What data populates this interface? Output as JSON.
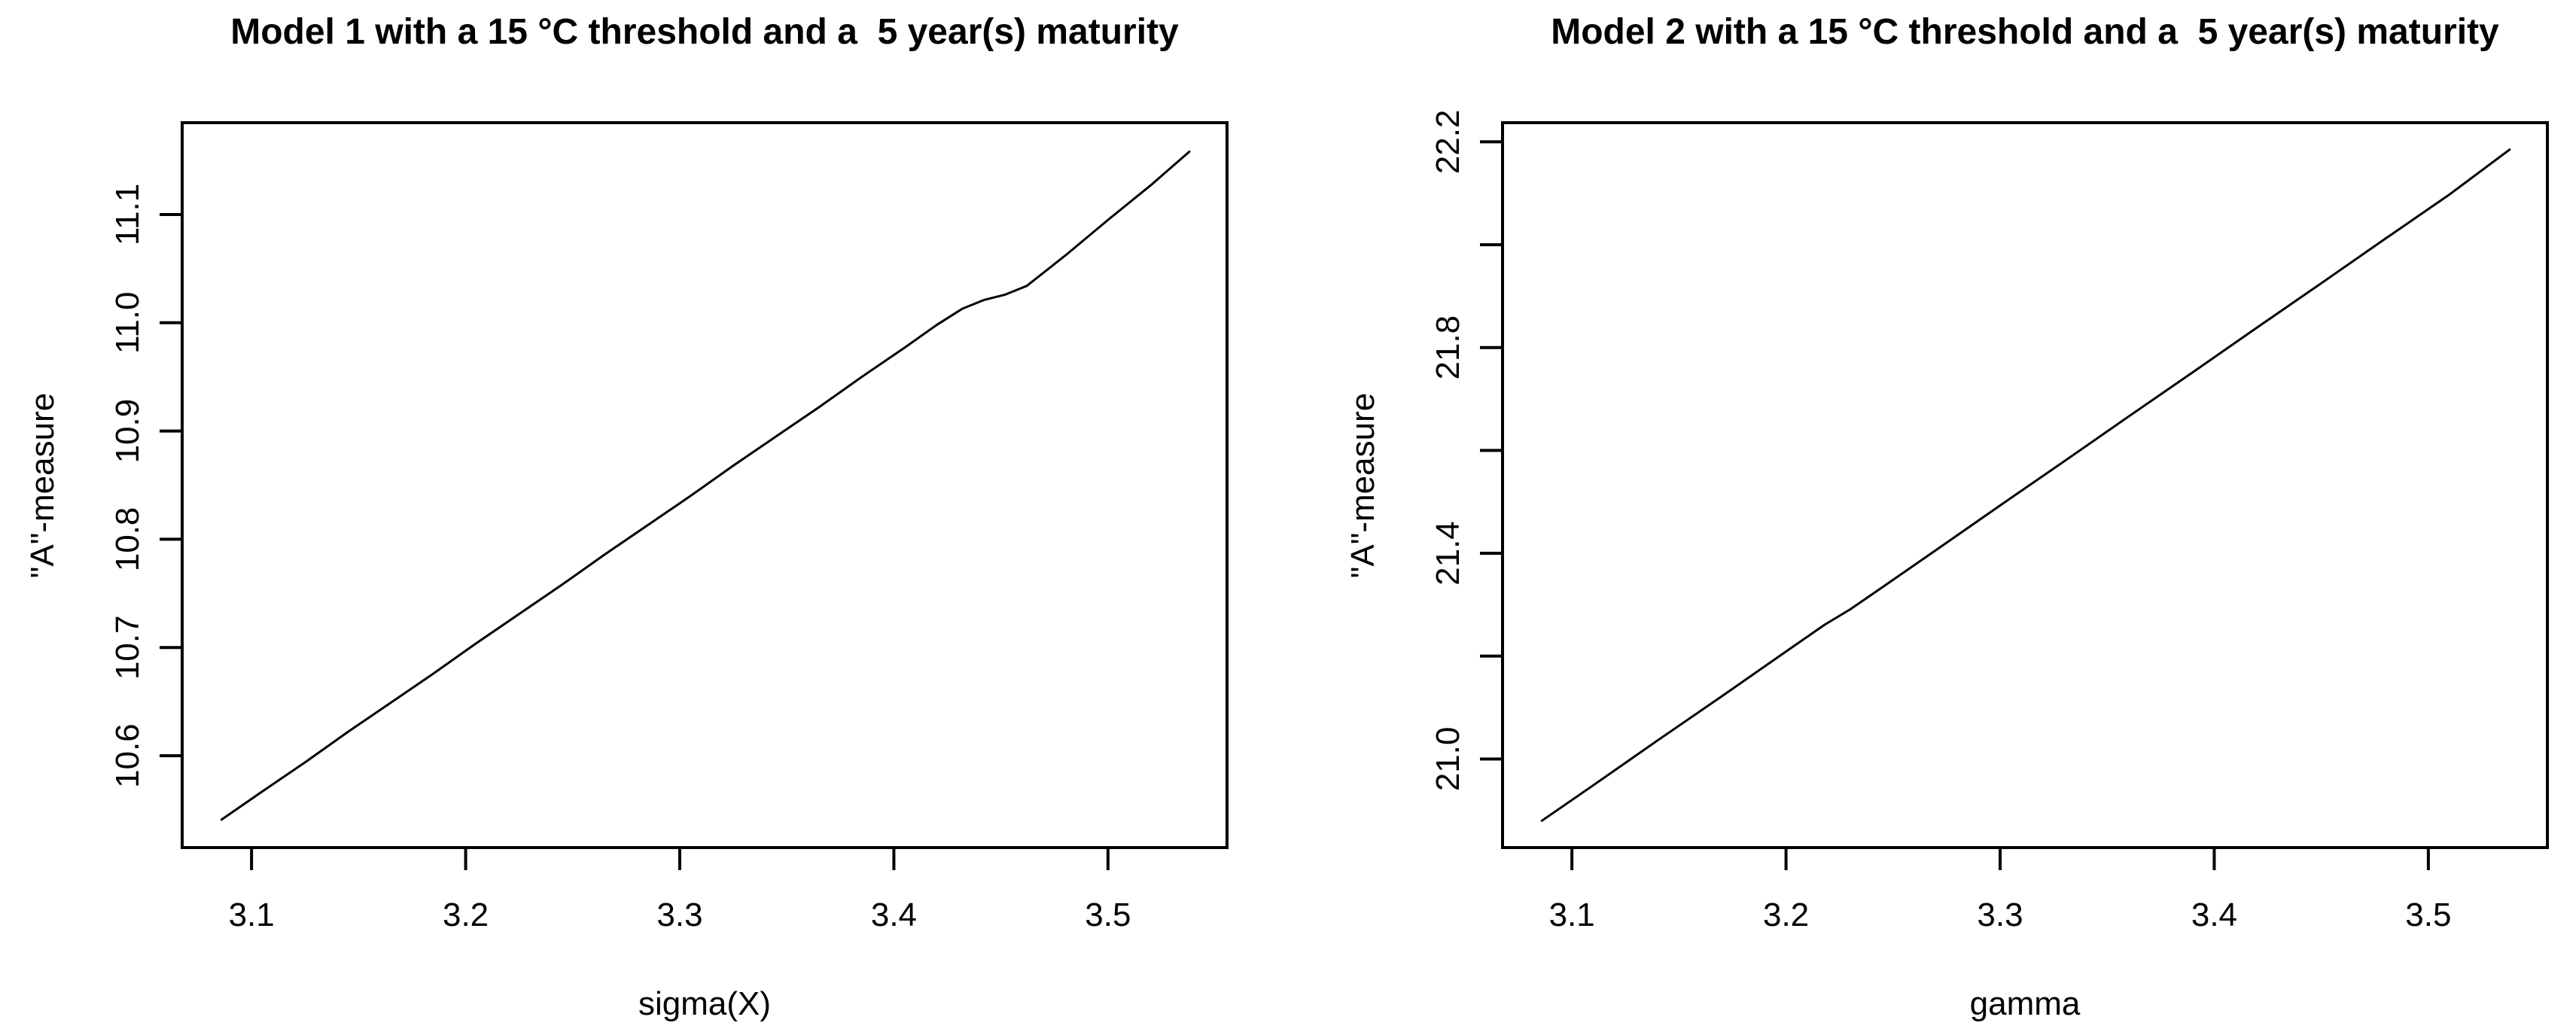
{
  "page": {
    "background_color": "#ffffff",
    "foreground_color": "#000000"
  },
  "chart_data": [
    {
      "type": "line",
      "title": "Model 1 with a 15 °C threshold and a  5 year(s) maturity",
      "xlabel": "sigma(X)",
      "ylabel": "\"A\"-measure",
      "xlim": [
        3.0676,
        3.5556
      ],
      "ylim": [
        10.5152,
        11.1848
      ],
      "grid": false,
      "legend": "none",
      "line_color": "#000000",
      "x_ticks": [
        {
          "v": 3.1,
          "label": "3.1"
        },
        {
          "v": 3.2,
          "label": "3.2"
        },
        {
          "v": 3.3,
          "label": "3.3"
        },
        {
          "v": 3.4,
          "label": "3.4"
        },
        {
          "v": 3.5,
          "label": "3.5"
        }
      ],
      "y_ticks": [
        {
          "v": 10.6,
          "label": "10.6"
        },
        {
          "v": 10.7,
          "label": "10.7"
        },
        {
          "v": 10.8,
          "label": "10.8"
        },
        {
          "v": 10.9,
          "label": "10.9"
        },
        {
          "v": 11.0,
          "label": "11.0"
        },
        {
          "v": 11.1,
          "label": "11.1"
        }
      ],
      "points": [
        [
          3.086,
          10.541
        ],
        [
          3.105,
          10.567
        ],
        [
          3.125,
          10.594
        ],
        [
          3.145,
          10.622
        ],
        [
          3.165,
          10.649
        ],
        [
          3.185,
          10.676
        ],
        [
          3.205,
          10.704
        ],
        [
          3.225,
          10.731
        ],
        [
          3.245,
          10.758
        ],
        [
          3.265,
          10.786
        ],
        [
          3.285,
          10.813
        ],
        [
          3.305,
          10.84
        ],
        [
          3.325,
          10.868
        ],
        [
          3.345,
          10.895
        ],
        [
          3.365,
          10.922
        ],
        [
          3.385,
          10.95
        ],
        [
          3.405,
          10.977
        ],
        [
          3.42,
          10.998
        ],
        [
          3.432,
          11.013
        ],
        [
          3.442,
          11.021
        ],
        [
          3.452,
          11.026
        ],
        [
          3.462,
          11.034
        ],
        [
          3.48,
          11.062
        ],
        [
          3.5,
          11.095
        ],
        [
          3.52,
          11.127
        ],
        [
          3.538,
          11.158
        ]
      ]
    },
    {
      "type": "line",
      "title": "Model 2 with a 15 °C threshold and a  5 year(s) maturity",
      "xlabel": "gamma",
      "ylabel": "\"A\"-measure",
      "xlim": [
        3.0676,
        3.5556
      ],
      "ylim": [
        20.8278,
        22.2372
      ],
      "grid": false,
      "legend": "none",
      "line_color": "#000000",
      "x_ticks": [
        {
          "v": 3.1,
          "label": "3.1"
        },
        {
          "v": 3.2,
          "label": "3.2"
        },
        {
          "v": 3.3,
          "label": "3.3"
        },
        {
          "v": 3.4,
          "label": "3.4"
        },
        {
          "v": 3.5,
          "label": "3.5"
        }
      ],
      "y_ticks": [
        {
          "v": 21.0,
          "label": "21.0"
        },
        {
          "v": 21.2,
          "label": ""
        },
        {
          "v": 21.4,
          "label": "21.4"
        },
        {
          "v": 21.6,
          "label": ""
        },
        {
          "v": 21.8,
          "label": "21.8"
        },
        {
          "v": 22.0,
          "label": ""
        },
        {
          "v": 22.2,
          "label": "22.2"
        }
      ],
      "points": [
        [
          3.086,
          20.88
        ],
        [
          3.11,
          20.949
        ],
        [
          3.14,
          21.036
        ],
        [
          3.17,
          21.122
        ],
        [
          3.2,
          21.209
        ],
        [
          3.218,
          21.261
        ],
        [
          3.23,
          21.291
        ],
        [
          3.245,
          21.334
        ],
        [
          3.27,
          21.406
        ],
        [
          3.3,
          21.493
        ],
        [
          3.33,
          21.579
        ],
        [
          3.36,
          21.666
        ],
        [
          3.39,
          21.752
        ],
        [
          3.42,
          21.839
        ],
        [
          3.45,
          21.925
        ],
        [
          3.48,
          22.012
        ],
        [
          3.51,
          22.098
        ],
        [
          3.538,
          22.185
        ]
      ]
    }
  ]
}
